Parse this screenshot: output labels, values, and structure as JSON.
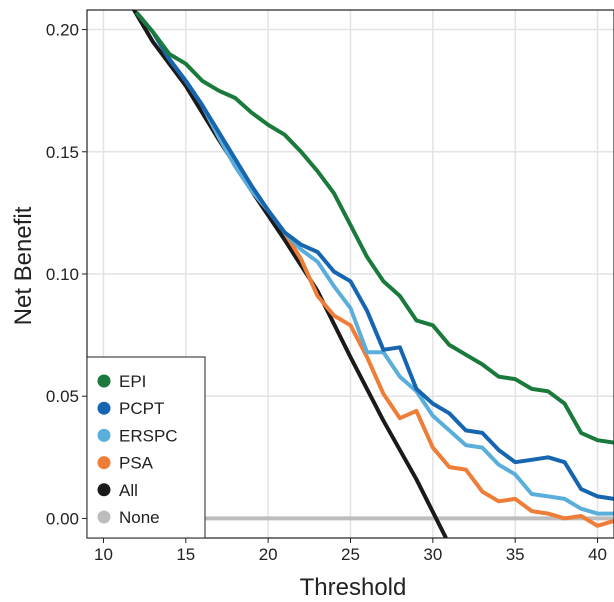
{
  "chart_data": {
    "type": "line",
    "xlabel": "Threshold",
    "ylabel": "Net Benefit",
    "xlim": [
      9,
      41
    ],
    "ylim": [
      -0.008,
      0.208
    ],
    "x_ticks": [
      10,
      15,
      20,
      25,
      30,
      35,
      40
    ],
    "x_tick_labels": [
      "10",
      "15",
      "20",
      "25",
      "30",
      "35",
      "40"
    ],
    "y_ticks": [
      0.0,
      0.05,
      0.1,
      0.15,
      0.2
    ],
    "y_tick_labels": [
      "0.00",
      "0.05",
      "0.10",
      "0.15",
      "0.20"
    ],
    "grid": true,
    "legend_position": "bottom-left",
    "series": [
      {
        "name": "EPI",
        "color": "#1a7a3c",
        "x": [
          12,
          13,
          14,
          15,
          16,
          17,
          18,
          19,
          20,
          21,
          22,
          23,
          24,
          25,
          26,
          27,
          28,
          29,
          30,
          31,
          32,
          33,
          34,
          35,
          36,
          37,
          38,
          39,
          40,
          41
        ],
        "y": [
          0.207,
          0.199,
          0.19,
          0.186,
          0.179,
          0.175,
          0.172,
          0.166,
          0.161,
          0.157,
          0.15,
          0.142,
          0.133,
          0.12,
          0.107,
          0.097,
          0.091,
          0.081,
          0.079,
          0.071,
          0.067,
          0.063,
          0.058,
          0.057,
          0.053,
          0.052,
          0.047,
          0.035,
          0.032,
          0.031
        ]
      },
      {
        "name": "PCPT",
        "color": "#1565b0",
        "x": [
          12,
          13,
          14,
          15,
          16,
          17,
          18,
          19,
          20,
          21,
          22,
          23,
          24,
          25,
          26,
          27,
          28,
          29,
          30,
          31,
          32,
          33,
          34,
          35,
          36,
          37,
          38,
          39,
          40,
          41
        ],
        "y": [
          0.207,
          0.199,
          0.188,
          0.179,
          0.169,
          0.158,
          0.147,
          0.136,
          0.126,
          0.117,
          0.112,
          0.109,
          0.101,
          0.097,
          0.085,
          0.069,
          0.07,
          0.053,
          0.047,
          0.043,
          0.036,
          0.035,
          0.028,
          0.023,
          0.024,
          0.025,
          0.023,
          0.012,
          0.009,
          0.008
        ]
      },
      {
        "name": "ERSPC",
        "color": "#5aaedb",
        "x": [
          12,
          13,
          14,
          15,
          16,
          17,
          18,
          19,
          20,
          21,
          22,
          23,
          24,
          25,
          26,
          27,
          28,
          29,
          30,
          31,
          32,
          33,
          34,
          35,
          36,
          37,
          38,
          39,
          40,
          41
        ],
        "y": [
          0.207,
          0.199,
          0.188,
          0.179,
          0.169,
          0.156,
          0.144,
          0.134,
          0.126,
          0.117,
          0.11,
          0.105,
          0.095,
          0.086,
          0.068,
          0.068,
          0.058,
          0.052,
          0.042,
          0.036,
          0.03,
          0.029,
          0.022,
          0.018,
          0.01,
          0.009,
          0.008,
          0.004,
          0.002,
          0.002
        ]
      },
      {
        "name": "PSA",
        "color": "#ee7d38",
        "x": [
          12,
          13,
          14,
          15,
          16,
          17,
          18,
          19,
          20,
          21,
          22,
          23,
          24,
          25,
          26,
          27,
          28,
          29,
          30,
          31,
          32,
          33,
          34,
          35,
          36,
          37,
          38,
          39,
          40,
          41
        ],
        "y": [
          0.207,
          0.199,
          0.188,
          0.179,
          0.169,
          0.156,
          0.144,
          0.134,
          0.126,
          0.117,
          0.106,
          0.091,
          0.083,
          0.079,
          0.066,
          0.051,
          0.041,
          0.044,
          0.029,
          0.021,
          0.02,
          0.011,
          0.007,
          0.008,
          0.003,
          0.002,
          0.0,
          0.001,
          -0.003,
          -0.001
        ]
      },
      {
        "name": "All",
        "color": "#1a1a1a",
        "x": [
          11.5,
          13,
          15,
          17,
          19,
          21,
          23,
          25,
          27,
          29,
          30.8
        ],
        "y": [
          0.212,
          0.195,
          0.177,
          0.155,
          0.134,
          0.114,
          0.093,
          0.066,
          0.04,
          0.016,
          -0.008
        ]
      },
      {
        "name": "None",
        "color": "#bdbdbd",
        "x": [
          9,
          41
        ],
        "y": [
          0.0,
          0.0
        ]
      }
    ]
  }
}
